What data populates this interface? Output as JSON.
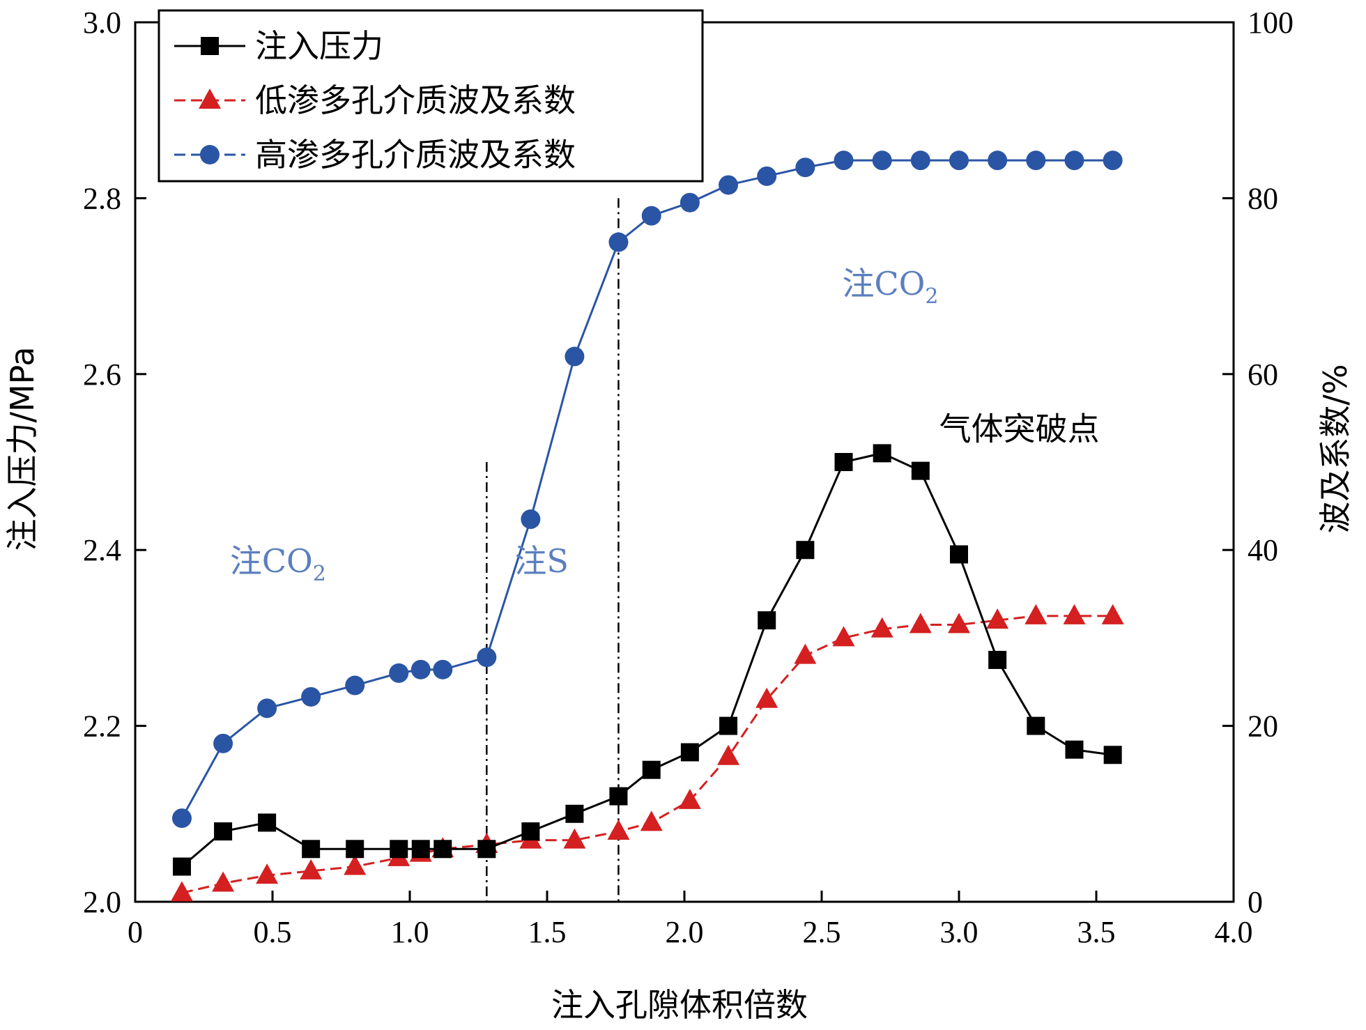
{
  "chart_data": {
    "type": "line",
    "xlabel": "注入孔隙体积倍数",
    "ylabel_left": "注入压力/MPa",
    "ylabel_right": "波及系数/%",
    "xlim": [
      0,
      4.0
    ],
    "ylim_left": [
      2.0,
      3.0
    ],
    "ylim_right": [
      0,
      100
    ],
    "x_ticks": [
      "0",
      "0.5",
      "1.0",
      "1.5",
      "2.0",
      "2.5",
      "3.0",
      "3.5",
      "4.0"
    ],
    "y_left_ticks": [
      "2.0",
      "2.2",
      "2.4",
      "2.6",
      "2.8",
      "3.0"
    ],
    "y_right_ticks": [
      "0",
      "20",
      "40",
      "60",
      "80",
      "100"
    ],
    "legend_position": "top-left",
    "series": [
      {
        "name": "注入压力",
        "axis": "left",
        "color": "#000000",
        "marker": "square",
        "line": "solid",
        "x": [
          0.17,
          0.32,
          0.48,
          0.64,
          0.8,
          0.96,
          1.04,
          1.12,
          1.28,
          1.44,
          1.6,
          1.76,
          1.88,
          2.02,
          2.16,
          2.3,
          2.44,
          2.58,
          2.72,
          2.86,
          3.0,
          3.14,
          3.28,
          3.42,
          3.56
        ],
        "y": [
          2.04,
          2.08,
          2.09,
          2.06,
          2.06,
          2.06,
          2.06,
          2.06,
          2.06,
          2.08,
          2.1,
          2.12,
          2.15,
          2.17,
          2.2,
          2.32,
          2.4,
          2.5,
          2.51,
          2.49,
          2.395,
          2.275,
          2.2,
          2.173,
          2.167
        ]
      },
      {
        "name": "低渗多孔介质波及系数",
        "axis": "right",
        "color": "#d42020",
        "marker": "triangle",
        "line": "dashed",
        "x": [
          0.17,
          0.32,
          0.48,
          0.64,
          0.8,
          0.96,
          1.04,
          1.12,
          1.28,
          1.44,
          1.6,
          1.76,
          1.88,
          2.02,
          2.16,
          2.3,
          2.44,
          2.58,
          2.72,
          2.86,
          3.0,
          3.14,
          3.28,
          3.42,
          3.56
        ],
        "y": [
          1.0,
          2.1,
          3.0,
          3.5,
          4.0,
          5.0,
          5.5,
          6.0,
          6.5,
          7.0,
          7.0,
          8.0,
          9.0,
          11.5,
          16.5,
          23.0,
          28.0,
          30.0,
          31.0,
          31.5,
          31.5,
          32.0,
          32.5,
          32.5,
          32.5
        ]
      },
      {
        "name": "高渗多孔介质波及系数",
        "axis": "right",
        "color": "#2a55a5",
        "marker": "circle",
        "line": "solid-dashed",
        "x": [
          0.17,
          0.32,
          0.48,
          0.64,
          0.8,
          0.96,
          1.04,
          1.12,
          1.28,
          1.44,
          1.6,
          1.76,
          1.88,
          2.02,
          2.16,
          2.3,
          2.44,
          2.58,
          2.72,
          2.86,
          3.0,
          3.14,
          3.28,
          3.42,
          3.56
        ],
        "y": [
          9.5,
          18.0,
          22.0,
          23.3,
          24.6,
          26.0,
          26.4,
          26.4,
          27.8,
          43.5,
          62.0,
          75.0,
          78.0,
          79.5,
          81.5,
          82.5,
          83.5,
          84.3,
          84.3,
          84.3,
          84.3,
          84.3,
          84.3,
          84.3,
          84.3
        ]
      }
    ],
    "dividers": [
      {
        "x": 1.28,
        "y_top": 2.5
      },
      {
        "x": 1.76,
        "y_top": 2.8
      }
    ],
    "annotations": [
      {
        "text_main": "注CO",
        "text_sub": "2",
        "x": 0.52,
        "y": 2.375,
        "color": "#5b7fbf"
      },
      {
        "text_main": "注S",
        "text_sub": "",
        "x": 1.48,
        "y": 2.375,
        "color": "#5b7fbf"
      },
      {
        "text_main": "注CO",
        "text_sub": "2",
        "x": 2.75,
        "y": 2.69,
        "color": "#5b7fbf"
      },
      {
        "text_main": "气体突破点",
        "text_sub": "",
        "x": 3.22,
        "y": 2.525,
        "color": "#000000"
      }
    ]
  }
}
